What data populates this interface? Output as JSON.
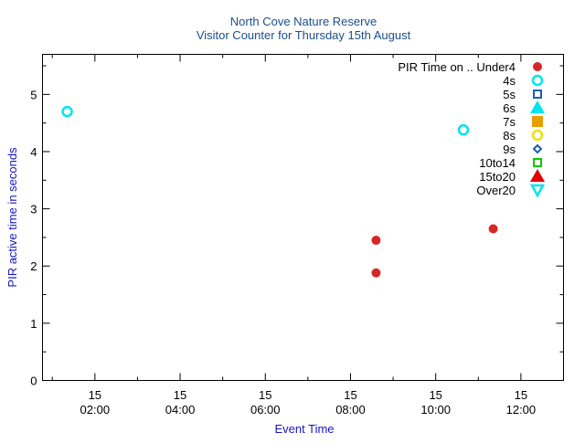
{
  "chart_data": {
    "type": "scatter",
    "title": "North Cove Nature Reserve",
    "subtitle": "Visitor Counter for Thursday 15th August",
    "xlabel": "Event Time",
    "ylabel": "PIR active time in seconds",
    "x_axis": {
      "unit": "hours of day",
      "range": [
        0.77,
        13.0
      ],
      "ticks": [
        {
          "value": 2,
          "day": "15",
          "time": "02:00"
        },
        {
          "value": 4,
          "day": "15",
          "time": "04:00"
        },
        {
          "value": 6,
          "day": "15",
          "time": "06:00"
        },
        {
          "value": 8,
          "day": "15",
          "time": "08:00"
        },
        {
          "value": 10,
          "day": "15",
          "time": "10:00"
        },
        {
          "value": 12,
          "day": "15",
          "time": "12:00"
        }
      ],
      "minor_ticks": [
        1,
        3,
        5,
        7,
        9,
        11
      ]
    },
    "y_axis": {
      "range": [
        0,
        5.7
      ],
      "ticks": [
        0,
        1,
        2,
        3,
        4,
        5
      ],
      "minor_ticks": [
        0.5,
        1.5,
        2.5,
        3.5,
        4.5,
        5.5
      ]
    },
    "grid": false,
    "legend": {
      "placement": "top-right",
      "title": "PIR Time on .."
    },
    "series": [
      {
        "name": "Under4",
        "marker": "circle-filled",
        "color": "#d62728",
        "points": [
          {
            "x": 8.6,
            "y": 2.45
          },
          {
            "x": 8.6,
            "y": 1.88
          },
          {
            "x": 11.35,
            "y": 2.65
          }
        ]
      },
      {
        "name": "4s",
        "marker": "circle-open",
        "color": "#00e5ee",
        "points": [
          {
            "x": 1.35,
            "y": 4.7
          },
          {
            "x": 10.65,
            "y": 4.38
          }
        ]
      },
      {
        "name": "5s",
        "marker": "square-open",
        "color": "#1a5fb4",
        "points": []
      },
      {
        "name": "6s",
        "marker": "triangle-filled",
        "color": "#00e5ee",
        "points": []
      },
      {
        "name": "7s",
        "marker": "square-filled",
        "color": "#e69f00",
        "points": []
      },
      {
        "name": "8s",
        "marker": "circle-open",
        "color": "#f0e000",
        "points": []
      },
      {
        "name": "9s",
        "marker": "diamond-open",
        "color": "#1a5fb4",
        "points": []
      },
      {
        "name": "10to14",
        "marker": "square-open",
        "color": "#00cc00",
        "points": []
      },
      {
        "name": "15to20",
        "marker": "triangle-filled",
        "color": "#e00000",
        "points": []
      },
      {
        "name": "Over20",
        "marker": "triangle-down-open",
        "color": "#00e5ee",
        "points": []
      }
    ]
  }
}
